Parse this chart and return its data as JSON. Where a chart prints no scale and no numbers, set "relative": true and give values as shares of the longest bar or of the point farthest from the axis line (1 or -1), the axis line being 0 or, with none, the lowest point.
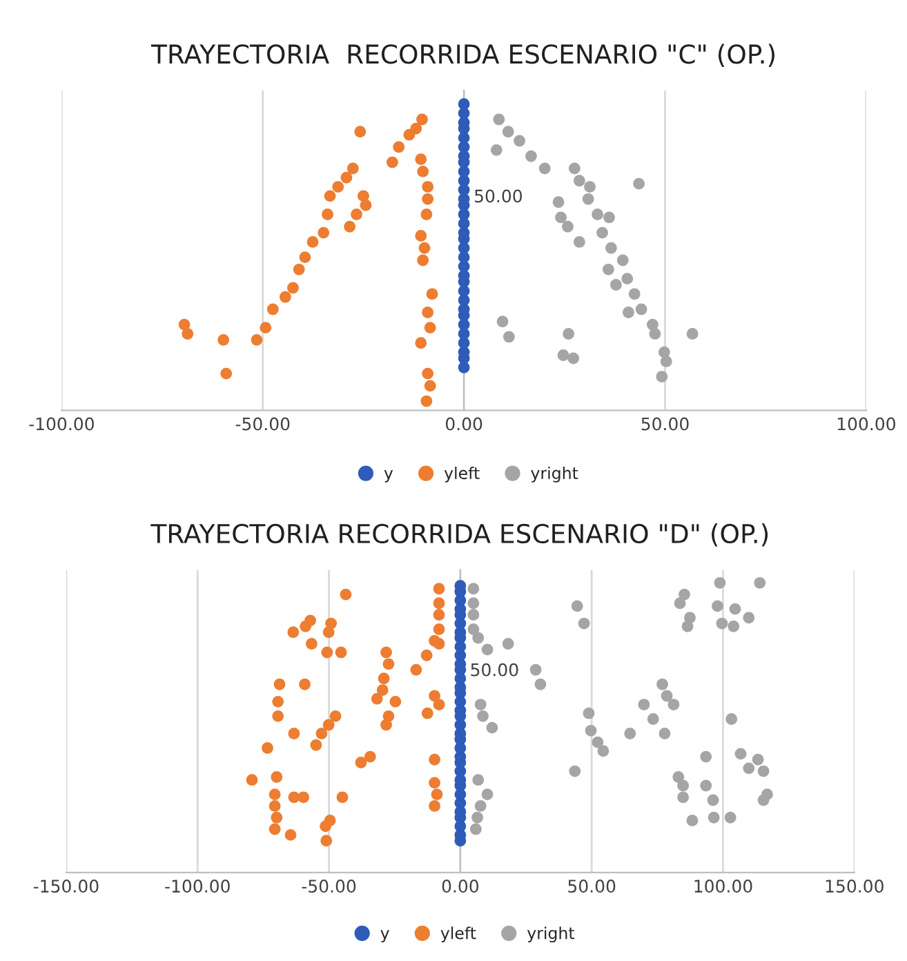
{
  "chart_data": [
    {
      "type": "scatter",
      "title": "TRAYECTORIA  RECORRIDA ESCENARIO \"C\" (OP.)",
      "relative": true,
      "annotations": [
        "50.00"
      ],
      "xlim": [
        -100,
        100
      ],
      "xticks": [
        {
          "value": -100,
          "label": "-100.00"
        },
        {
          "value": -50,
          "label": "-50.00"
        },
        {
          "value": 0,
          "label": "0.00"
        },
        {
          "value": 50,
          "label": "50.00"
        },
        {
          "value": 100,
          "label": "100.00"
        }
      ],
      "grid": "x",
      "legend": "bottom",
      "marker": "circle",
      "series": [
        {
          "name": "y",
          "color": "#2f5cb8",
          "x": [
            0,
            0,
            0,
            0,
            0,
            0,
            0,
            0,
            0,
            0,
            0,
            0,
            0,
            0,
            0,
            0,
            0,
            0,
            0,
            0,
            0,
            0,
            0,
            0,
            0,
            0,
            0,
            0,
            0,
            0,
            0,
            0
          ],
          "values": [
            0.14,
            0.17,
            0.19,
            0.22,
            0.25,
            0.28,
            0.31,
            0.33,
            0.36,
            0.39,
            0.42,
            0.44,
            0.47,
            0.5,
            0.53,
            0.56,
            0.58,
            0.61,
            0.64,
            0.67,
            0.69,
            0.72,
            0.75,
            0.78,
            0.81,
            0.83,
            0.86,
            0.89,
            0.92,
            0.94,
            0.97,
            1.0
          ]
        },
        {
          "name": "yleft",
          "color": "#ed7d31",
          "x": [
            -69.5,
            -68.7,
            -59.8,
            -59.1,
            -51.5,
            -49.3,
            -47.5,
            -44.4,
            -42.5,
            -41.0,
            -39.5,
            -37.6,
            -34.9,
            -33.9,
            -33.3,
            -31.3,
            -29.2,
            -27.6,
            -25.8,
            -28.4,
            -26.7,
            -24.4,
            -25.0,
            -17.8,
            -16.2,
            -13.6,
            -11.9,
            -10.4,
            -10.7,
            -10.2,
            -9.0,
            -9.0,
            -9.3,
            -10.7,
            -9.8,
            -10.2,
            -7.9,
            -9.0,
            -8.4,
            -10.7,
            -9.0,
            -8.4,
            -9.3
          ],
          "values": [
            0.28,
            0.25,
            0.23,
            0.12,
            0.23,
            0.27,
            0.33,
            0.37,
            0.4,
            0.46,
            0.5,
            0.55,
            0.58,
            0.64,
            0.7,
            0.73,
            0.76,
            0.79,
            0.91,
            0.6,
            0.64,
            0.67,
            0.7,
            0.81,
            0.86,
            0.9,
            0.92,
            0.95,
            0.82,
            0.78,
            0.73,
            0.69,
            0.64,
            0.57,
            0.53,
            0.49,
            0.38,
            0.32,
            0.27,
            0.22,
            0.12,
            0.08,
            0.03
          ]
        },
        {
          "name": "yright",
          "color": "#a5a5a5",
          "x": [
            8.7,
            11.0,
            13.8,
            16.7,
            20.1,
            8.1,
            27.5,
            28.7,
            31.3,
            30.9,
            43.5,
            23.5,
            24.1,
            25.8,
            28.7,
            33.2,
            36.1,
            34.4,
            36.6,
            39.5,
            35.9,
            40.6,
            37.8,
            42.4,
            44.1,
            40.9,
            46.9,
            47.5,
            49.8,
            50.3,
            49.2,
            56.8,
            9.6,
            11.2,
            26.0,
            24.7,
            27.2
          ],
          "values": [
            0.95,
            0.91,
            0.88,
            0.83,
            0.79,
            0.85,
            0.79,
            0.75,
            0.73,
            0.69,
            0.74,
            0.68,
            0.63,
            0.6,
            0.55,
            0.64,
            0.63,
            0.58,
            0.53,
            0.49,
            0.46,
            0.43,
            0.41,
            0.38,
            0.33,
            0.32,
            0.28,
            0.25,
            0.19,
            0.16,
            0.11,
            0.25,
            0.29,
            0.24,
            0.25,
            0.18,
            0.17
          ]
        }
      ]
    },
    {
      "type": "scatter",
      "title": "TRAYECTORIA RECORRIDA ESCENARIO \"D\" (OP.)",
      "relative": true,
      "annotations": [
        "50.00"
      ],
      "xlim": [
        -150,
        150
      ],
      "xticks": [
        {
          "value": -150,
          "label": "-150.00"
        },
        {
          "value": -100,
          "label": "-100.00"
        },
        {
          "value": -50,
          "label": "-50.00"
        },
        {
          "value": 0,
          "label": "0.00"
        },
        {
          "value": 50,
          "label": "50.00"
        },
        {
          "value": 100,
          "label": "100.00"
        },
        {
          "value": 150,
          "label": "150.00"
        }
      ],
      "grid": "x",
      "legend": "bottom",
      "marker": "circle",
      "series": [
        {
          "name": "y",
          "color": "#2f5cb8",
          "x": [
            0,
            0,
            0,
            0,
            0,
            0,
            0,
            0,
            0,
            0,
            0,
            0,
            0,
            0,
            0,
            0,
            0,
            0,
            0,
            0,
            0,
            0,
            0,
            0,
            0,
            0,
            0,
            0,
            0,
            0,
            0,
            0,
            0,
            0
          ],
          "values": [
            0.11,
            0.13,
            0.16,
            0.19,
            0.21,
            0.24,
            0.27,
            0.3,
            0.32,
            0.35,
            0.38,
            0.4,
            0.43,
            0.46,
            0.48,
            0.51,
            0.54,
            0.56,
            0.59,
            0.62,
            0.64,
            0.67,
            0.7,
            0.72,
            0.75,
            0.78,
            0.81,
            0.83,
            0.86,
            0.89,
            0.91,
            0.94,
            0.97,
            0.99
          ]
        },
        {
          "name": "yleft",
          "color": "#ed7d31",
          "x": [
            -43.6,
            -8.1,
            -8.1,
            -8.1,
            -8.1,
            -8.1,
            -9.8,
            -12.8,
            -16.8,
            -57.1,
            -58.9,
            -63.6,
            -56.6,
            -49.2,
            -50.1,
            -50.7,
            -45.4,
            -28.2,
            -27.3,
            -29.1,
            -29.6,
            -31.7,
            -24.7,
            -27.3,
            -28.2,
            -9.8,
            -8.1,
            -12.5,
            -68.8,
            -69.4,
            -69.4,
            -59.2,
            -47.5,
            -50.1,
            -52.8,
            -54.9,
            -63.3,
            -73.4,
            -37.8,
            -34.3,
            -9.8,
            -9.8,
            -8.9,
            -9.8,
            -79.3,
            -69.9,
            -70.6,
            -70.6,
            -69.9,
            -70.6,
            -64.6,
            -63.3,
            -59.7,
            -44.9,
            -49.6,
            -51.3,
            -51.0
          ],
          "values": [
            0.96,
            0.98,
            0.93,
            0.89,
            0.84,
            0.79,
            0.8,
            0.75,
            0.7,
            0.87,
            0.85,
            0.83,
            0.79,
            0.86,
            0.83,
            0.76,
            0.76,
            0.76,
            0.72,
            0.67,
            0.63,
            0.6,
            0.59,
            0.54,
            0.51,
            0.61,
            0.58,
            0.55,
            0.65,
            0.59,
            0.54,
            0.65,
            0.54,
            0.51,
            0.48,
            0.44,
            0.48,
            0.43,
            0.38,
            0.4,
            0.39,
            0.31,
            0.27,
            0.23,
            0.32,
            0.33,
            0.27,
            0.23,
            0.19,
            0.15,
            0.13,
            0.26,
            0.26,
            0.26,
            0.18,
            0.16,
            0.11
          ]
        },
        {
          "name": "yright",
          "color": "#a5a5a5",
          "x": [
            5.0,
            5.0,
            5.0,
            5.0,
            6.8,
            10.3,
            18.2,
            28.7,
            30.5,
            44.5,
            47.1,
            7.7,
            8.6,
            12.1,
            48.9,
            49.7,
            52.3,
            54.4,
            43.6,
            64.6,
            69.9,
            73.4,
            77.8,
            76.9,
            78.6,
            81.2,
            85.3,
            83.6,
            87.4,
            86.5,
            98.8,
            114.0,
            97.9,
            104.6,
            109.8,
            99.6,
            104.0,
            103.2,
            93.5,
            83.0,
            84.8,
            84.8,
            93.5,
            96.2,
            88.3,
            96.5,
            102.8,
            106.7,
            113.3,
            109.8,
            115.4,
            116.8,
            115.4,
            6.8,
            10.3,
            7.7,
            6.5,
            5.9
          ],
          "values": [
            0.98,
            0.93,
            0.89,
            0.84,
            0.81,
            0.77,
            0.79,
            0.7,
            0.65,
            0.92,
            0.86,
            0.58,
            0.54,
            0.5,
            0.55,
            0.49,
            0.45,
            0.42,
            0.35,
            0.48,
            0.58,
            0.53,
            0.48,
            0.65,
            0.61,
            0.58,
            0.96,
            0.93,
            0.88,
            0.85,
            1.0,
            1.0,
            0.92,
            0.91,
            0.88,
            0.86,
            0.85,
            0.53,
            0.4,
            0.33,
            0.3,
            0.26,
            0.3,
            0.25,
            0.18,
            0.19,
            0.19,
            0.41,
            0.39,
            0.36,
            0.35,
            0.27,
            0.25,
            0.32,
            0.27,
            0.23,
            0.19,
            0.15
          ]
        }
      ]
    }
  ]
}
